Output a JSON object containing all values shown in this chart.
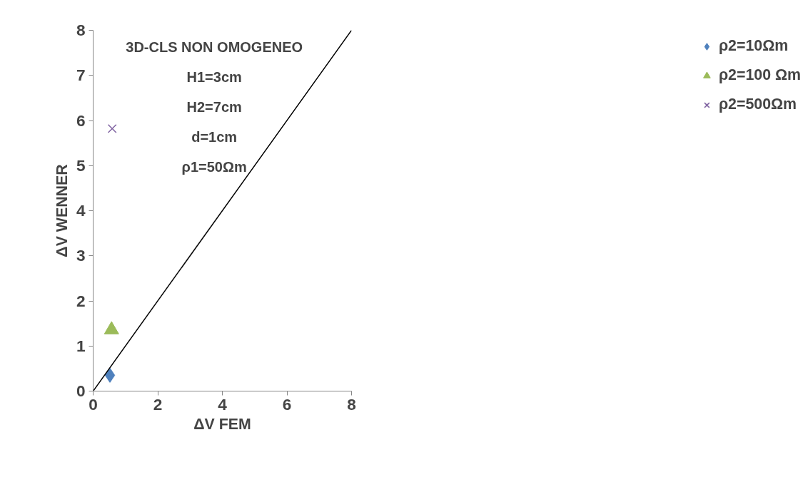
{
  "chart_data": {
    "type": "scatter",
    "xlabel": "ΔV FEM",
    "ylabel": "ΔV WENNER",
    "annotations": [
      "3D-CLS NON OMOGENEO",
      "H1=3cm",
      "H2=7cm",
      "d=1cm",
      "ρ1=50Ωm"
    ],
    "xlim": [
      0,
      8
    ],
    "ylim": [
      0,
      8
    ],
    "xticks": [
      0,
      2,
      4,
      6,
      8
    ],
    "yticks": [
      0,
      1,
      2,
      3,
      4,
      5,
      6,
      7,
      8
    ],
    "grid": false,
    "legend": "right",
    "series": [
      {
        "name": "ρ2=10Ωm",
        "color": "#4f81bd",
        "marker": "diamond",
        "x": [
          0.52
        ],
        "values": [
          0.35
        ]
      },
      {
        "name": "ρ2=100 Ωm",
        "color": "#9bbb59",
        "marker": "triangle",
        "x": [
          0.57
        ],
        "values": [
          1.36
        ]
      },
      {
        "name": "ρ2=500Ωm",
        "color": "#8064a2",
        "marker": "cross",
        "x": [
          0.59
        ],
        "values": [
          5.82
        ]
      },
      {
        "type": "line",
        "color": "#000000",
        "marker": "none",
        "x": [
          0,
          8
        ],
        "values": [
          0,
          8
        ]
      }
    ]
  }
}
